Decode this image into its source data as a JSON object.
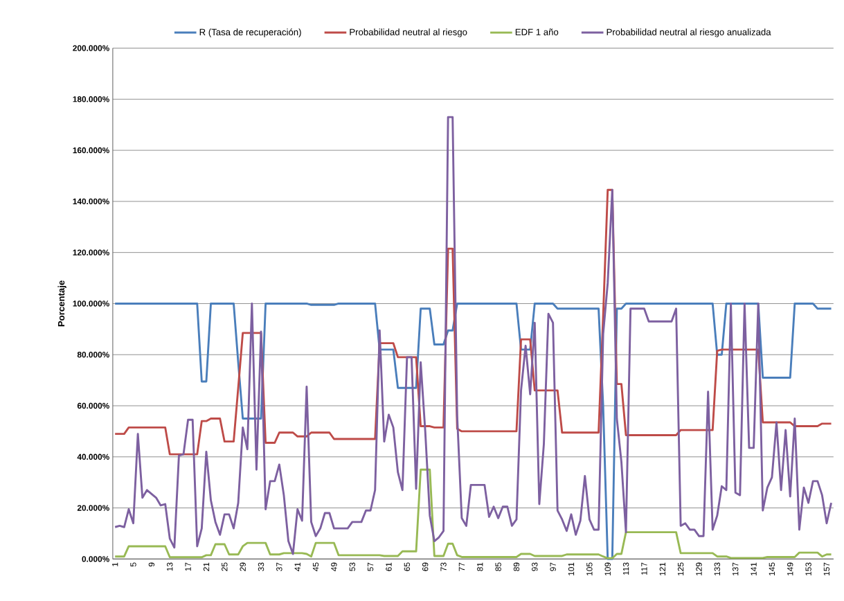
{
  "chart_data": {
    "type": "line",
    "ylabel": "Porcentaje",
    "categories": [
      "1",
      null,
      null,
      null,
      "5",
      null,
      null,
      null,
      "9",
      null,
      null,
      null,
      "13",
      null,
      null,
      null,
      "17",
      null,
      null,
      null,
      "21",
      null,
      null,
      null,
      "25",
      null,
      null,
      null,
      "29",
      null,
      null,
      null,
      "33",
      null,
      null,
      null,
      "37",
      null,
      null,
      null,
      "41",
      null,
      null,
      null,
      "45",
      null,
      null,
      null,
      "49",
      null,
      null,
      null,
      "53",
      null,
      null,
      null,
      "57",
      null,
      null,
      null,
      "61",
      null,
      null,
      null,
      "65",
      null,
      null,
      null,
      "69",
      null,
      null,
      null,
      "73",
      null,
      null,
      null,
      "77",
      null,
      null,
      null,
      "81",
      null,
      null,
      null,
      "85",
      null,
      null,
      null,
      "89",
      null,
      null,
      null,
      "93",
      null,
      null,
      null,
      "97",
      null,
      null,
      null,
      "101",
      null,
      null,
      null,
      "105",
      null,
      null,
      null,
      "109",
      null,
      null,
      null,
      "113",
      null,
      null,
      null,
      "117",
      null,
      null,
      null,
      "121",
      null,
      null,
      null,
      "125",
      null,
      null,
      null,
      "129",
      null,
      null,
      null,
      "133",
      null,
      null,
      null,
      "137",
      null,
      null,
      null,
      "141",
      null,
      null,
      null,
      "145",
      null,
      null,
      null,
      "149",
      null,
      null,
      null,
      "153",
      null,
      null,
      null,
      "157",
      null
    ],
    "ylim": [
      0,
      200
    ],
    "yticks": [
      {
        "value": 0,
        "label": "0.000%"
      },
      {
        "value": 20,
        "label": "20.000%"
      },
      {
        "value": 40,
        "label": "40.000%"
      },
      {
        "value": 60,
        "label": "60.000%"
      },
      {
        "value": 80,
        "label": "80.000%"
      },
      {
        "value": 100,
        "label": "100.000%"
      },
      {
        "value": 120,
        "label": "120.000%"
      },
      {
        "value": 140,
        "label": "140.000%"
      },
      {
        "value": 160,
        "label": "160.000%"
      },
      {
        "value": 180,
        "label": "180.000%"
      },
      {
        "value": 200,
        "label": "200.000%"
      }
    ],
    "grid": "y",
    "legend": "top",
    "marker": "none",
    "line_style": "solid",
    "series": [
      {
        "name": "R (Tasa de recuperación)",
        "color": "#4a7ebb",
        "values": [
          100,
          100,
          100,
          100,
          100,
          100,
          100,
          100,
          100,
          100,
          100,
          100,
          100,
          100,
          100,
          100,
          100,
          100,
          100,
          69.5,
          69.5,
          100,
          100,
          100,
          100,
          100,
          100,
          77,
          55,
          55,
          55,
          55,
          55,
          100,
          100,
          100,
          100,
          100,
          100,
          100,
          100,
          100,
          100,
          99.5,
          99.5,
          99.5,
          99.5,
          99.5,
          99.5,
          100,
          100,
          100,
          100,
          100,
          100,
          100,
          100,
          100,
          82,
          82,
          82,
          82,
          67,
          67,
          67,
          67,
          67,
          98,
          98,
          98,
          84,
          84,
          84,
          89.5,
          89.5,
          100,
          100,
          100,
          100,
          100,
          100,
          100,
          100,
          100,
          100,
          100,
          100,
          100,
          100,
          82,
          82,
          82,
          100,
          100,
          100,
          100,
          100,
          98,
          98,
          98,
          98,
          98,
          98,
          98,
          98,
          98,
          98,
          60,
          0,
          0,
          98,
          98,
          100,
          100,
          100,
          100,
          100,
          100,
          100,
          100,
          100,
          100,
          100,
          100,
          100,
          100,
          100,
          100,
          100,
          100,
          100,
          100,
          80,
          80,
          100,
          100,
          100,
          100,
          100,
          100,
          100,
          100,
          71,
          71,
          71,
          71,
          71,
          71,
          71,
          100,
          100,
          100,
          100,
          100,
          98,
          98,
          98,
          98
        ]
      },
      {
        "name": "Probabilidad neutral al riesgo",
        "color": "#be4b48",
        "values": [
          49,
          49,
          49,
          51.5,
          51.5,
          51.5,
          51.5,
          51.5,
          51.5,
          51.5,
          51.5,
          51.5,
          41,
          41,
          41,
          41,
          41,
          41,
          41,
          54,
          54,
          55,
          55,
          55,
          46,
          46,
          46,
          67,
          88.5,
          88.5,
          88.5,
          88.5,
          88.5,
          45.5,
          45.5,
          45.5,
          49.5,
          49.5,
          49.5,
          49.5,
          48,
          48,
          48,
          49.5,
          49.5,
          49.5,
          49.5,
          49.5,
          47,
          47,
          47,
          47,
          47,
          47,
          47,
          47,
          47,
          47,
          84.5,
          84.5,
          84.5,
          84.5,
          79,
          79,
          79,
          79,
          79,
          52,
          52,
          52,
          51.5,
          51.5,
          51.5,
          121.5,
          121.5,
          51,
          50,
          50,
          50,
          50,
          50,
          50,
          50,
          50,
          50,
          50,
          50,
          50,
          50,
          86,
          86,
          86,
          66,
          66,
          66,
          66,
          66,
          66,
          49.5,
          49.5,
          49.5,
          49.5,
          49.5,
          49.5,
          49.5,
          49.5,
          49.5,
          95,
          144.5,
          144.5,
          68.5,
          68.5,
          48.5,
          48.5,
          48.5,
          48.5,
          48.5,
          48.5,
          48.5,
          48.5,
          48.5,
          48.5,
          48.5,
          48.5,
          50.5,
          50.5,
          50.5,
          50.5,
          50.5,
          50.5,
          50.5,
          50.5,
          81.5,
          82,
          82,
          82,
          82,
          82,
          82,
          82,
          82,
          82,
          53.5,
          53.5,
          53.5,
          53.5,
          53.5,
          53.5,
          53.5,
          52,
          52,
          52,
          52,
          52,
          52,
          53,
          53,
          53
        ]
      },
      {
        "name": "EDF 1 año",
        "color": "#98b954",
        "values": [
          1,
          1,
          1,
          5,
          5,
          5,
          5,
          5,
          5,
          5,
          5,
          5,
          0.7,
          0.7,
          0.7,
          0.7,
          0.7,
          0.7,
          0.7,
          0.7,
          1.5,
          1.5,
          5.8,
          5.8,
          5.8,
          1.8,
          1.8,
          1.8,
          5,
          6.3,
          6.3,
          6.3,
          6.3,
          6.3,
          1.8,
          1.8,
          1.8,
          2.3,
          2.3,
          2.3,
          2.3,
          2.3,
          2,
          1,
          6.3,
          6.3,
          6.3,
          6.3,
          6.3,
          1.5,
          1.5,
          1.5,
          1.5,
          1.5,
          1.5,
          1.5,
          1.5,
          1.5,
          1.5,
          1.2,
          1.2,
          1.2,
          1.2,
          3,
          3,
          3,
          3,
          35,
          35,
          35,
          1.2,
          1.2,
          1.2,
          6,
          6,
          1.5,
          0.8,
          0.8,
          0.8,
          0.8,
          0.8,
          0.8,
          0.8,
          0.8,
          0.8,
          0.8,
          0.8,
          0.8,
          0.8,
          2,
          2,
          2,
          1.2,
          1.2,
          1.2,
          1.2,
          1.2,
          1.2,
          1.2,
          1.8,
          1.8,
          1.8,
          1.8,
          1.8,
          1.8,
          1.8,
          1.8,
          1,
          0.3,
          0.3,
          2,
          2,
          10.5,
          10.5,
          10.5,
          10.5,
          10.5,
          10.5,
          10.5,
          10.5,
          10.5,
          10.5,
          10.5,
          10.5,
          2.3,
          2.3,
          2.3,
          2.3,
          2.3,
          2.3,
          2.3,
          2.3,
          1,
          1,
          1,
          0.4,
          0.4,
          0.4,
          0.4,
          0.4,
          0.4,
          0.4,
          0.4,
          0.8,
          0.8,
          0.8,
          0.8,
          0.8,
          0.8,
          0.8,
          2.5,
          2.5,
          2.5,
          2.5,
          2.5,
          1,
          1.8,
          1.8
        ]
      },
      {
        "name": "Probabilidad neutral al riesgo anualizada",
        "color": "#7d60a0",
        "values": [
          12.5,
          13,
          12.5,
          19.5,
          14,
          49,
          24,
          27,
          25.5,
          24,
          21,
          21.5,
          8,
          4.5,
          40.5,
          41,
          54.5,
          54.5,
          5,
          12,
          42,
          23,
          14.5,
          9.5,
          17.5,
          17.5,
          12,
          22,
          51.5,
          43,
          100,
          35,
          89,
          19.5,
          30.5,
          30.5,
          37,
          25,
          7,
          2,
          19.5,
          15,
          67.5,
          14.5,
          9,
          12,
          18,
          18,
          12,
          12,
          12,
          12,
          14.5,
          14.5,
          14.5,
          19,
          19,
          27,
          89.5,
          46,
          56.5,
          51.5,
          34,
          27,
          79,
          79,
          27.5,
          77,
          50,
          17,
          7,
          8.5,
          11,
          173,
          173,
          56,
          16,
          13,
          29,
          29,
          29,
          29,
          16.5,
          20.5,
          16,
          20.5,
          20.5,
          13,
          15.5,
          66,
          83.5,
          64.5,
          92.5,
          21.5,
          45,
          96,
          92.5,
          19,
          15.5,
          11,
          17.5,
          9.5,
          15,
          32.5,
          15.5,
          11.5,
          11.5,
          88,
          108,
          144.5,
          55,
          38,
          10.5,
          98,
          98,
          98,
          98,
          93,
          93,
          93,
          93,
          93,
          93,
          98,
          13,
          14,
          11.5,
          11.5,
          9,
          9,
          65.5,
          11.5,
          17,
          28.5,
          27,
          100,
          26,
          25,
          100,
          43.5,
          43.5,
          100,
          19,
          28,
          32,
          53.5,
          27,
          50.5,
          24.5,
          55,
          11.5,
          28,
          22,
          30.5,
          30.5,
          25,
          14,
          22
        ]
      }
    ]
  }
}
